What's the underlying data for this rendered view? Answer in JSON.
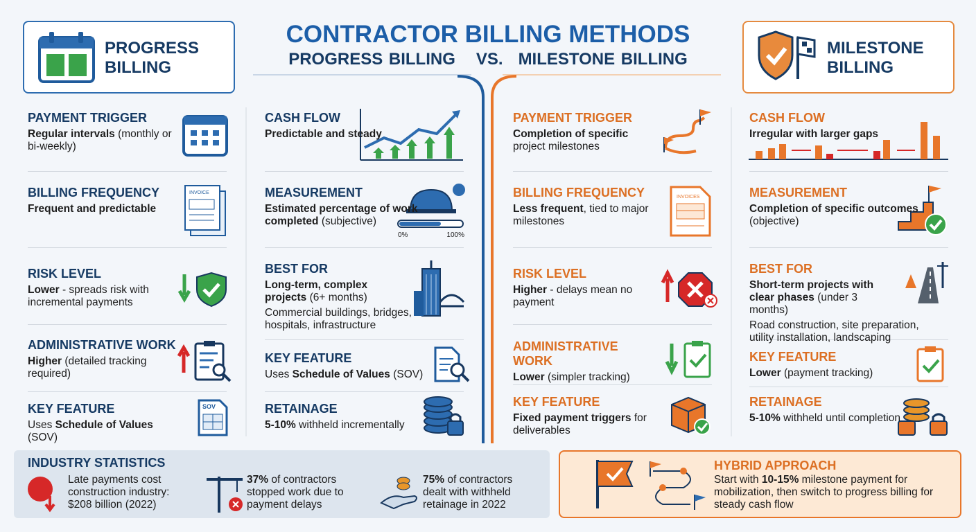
{
  "title": "CONTRACTOR BILLING METHODS",
  "subtitle": {
    "left": "PROGRESS BILLING",
    "vs": "VS.",
    "right": "MILESTONE BILLING"
  },
  "progress": {
    "badge": "PROGRESS BILLING",
    "left": [
      {
        "heading": "PAYMENT TRIGGER",
        "body": [
          {
            "text": "Regular intervals",
            "bold": true
          },
          {
            "text": " (monthly or bi-weekly)"
          }
        ]
      },
      {
        "heading": "BILLING FREQUENCY",
        "body": [
          {
            "text": "Frequent and predictable",
            "bold": true
          }
        ],
        "icon_text": "INVOICE"
      },
      {
        "heading": "RISK LEVEL",
        "body": [
          {
            "text": "Lower",
            "bold": true
          },
          {
            "text": " - spreads risk with incremental payments"
          }
        ]
      },
      {
        "heading": "ADMINISTRATIVE WORK",
        "body": [
          {
            "text": "Higher",
            "bold": true
          },
          {
            "text": " (detailed tracking required)"
          }
        ]
      },
      {
        "heading": "KEY FEATURE",
        "body": [
          {
            "text": "Uses "
          },
          {
            "text": "Schedule of Values",
            "bold": true
          },
          {
            "text": " (SOV)"
          }
        ],
        "icon_text": "SOV"
      }
    ],
    "right": [
      {
        "heading": "CASH FLOW",
        "body": [
          {
            "text": "Predictable and steady",
            "bold": true
          }
        ]
      },
      {
        "heading": "MEASUREMENT",
        "body": [
          {
            "text": "Estimated percentage of work completed",
            "bold": true
          },
          {
            "text": " (subjective)"
          }
        ],
        "scale_labels": [
          "0%",
          "100%"
        ]
      },
      {
        "heading": "BEST FOR",
        "body": [
          {
            "text": "Long-term, complex projects",
            "bold": true
          },
          {
            "text": " (6+ months)"
          }
        ],
        "note": "Commercial buildings, bridges, hospitals, infrastructure"
      },
      {
        "heading": "KEY FEATURE",
        "body": [
          {
            "text": "Uses "
          },
          {
            "text": "Schedule of Values",
            "bold": true
          },
          {
            "text": " (SOV)"
          }
        ]
      },
      {
        "heading": "RETAINAGE",
        "body": [
          {
            "text": "5-10%",
            "bold": true
          },
          {
            "text": " withheld incrementally"
          }
        ]
      }
    ]
  },
  "milestone": {
    "badge": "MILESTONE BILLING",
    "left": [
      {
        "heading": "PAYMENT TRIGGER",
        "body": [
          {
            "text": "Completion of specific",
            "bold": true
          },
          {
            "text": " project milestones"
          }
        ]
      },
      {
        "heading": "BILLING FREQUENCY",
        "body": [
          {
            "text": "Less frequent",
            "bold": true
          },
          {
            "text": ", tied to major milestones"
          }
        ],
        "icon_text": "INVOICES"
      },
      {
        "heading": "RISK LEVEL",
        "body": [
          {
            "text": "Higher",
            "bold": true
          },
          {
            "text": " - delays mean no payment"
          }
        ]
      },
      {
        "heading": "ADMINISTRATIVE WORK",
        "body": [
          {
            "text": "Lower",
            "bold": true
          },
          {
            "text": " (simpler tracking)"
          }
        ]
      },
      {
        "heading": "KEY FEATURE",
        "body": [
          {
            "text": "Fixed payment triggers",
            "bold": true
          },
          {
            "text": " for deliverables"
          }
        ]
      }
    ],
    "right": [
      {
        "heading": "CASH FLOW",
        "body": [
          {
            "text": "Irregular with larger gaps",
            "bold": true
          }
        ]
      },
      {
        "heading": "MEASUREMENT",
        "body": [
          {
            "text": "Completion of specific outcomes",
            "bold": true
          },
          {
            "text": " (objective)"
          }
        ]
      },
      {
        "heading": "BEST FOR",
        "body": [
          {
            "text": "Short-term projects with clear phases",
            "bold": true
          },
          {
            "text": " (under 3 months)"
          }
        ],
        "note": "Road construction, site preparation, utility installation, landscaping"
      },
      {
        "heading": "KEY FEATURE",
        "body": [
          {
            "text": "Lower",
            "bold": true
          },
          {
            "text": " (payment tracking)"
          }
        ]
      },
      {
        "heading": "RETAINAGE",
        "body": [
          {
            "text": "5-10%",
            "bold": true
          },
          {
            "text": " withheld until completion"
          }
        ]
      }
    ]
  },
  "stats": {
    "title": "INDUSTRY STATISTICS",
    "items": [
      [
        {
          "text": "Late payments cost construction industry: $208 billion (2022)"
        }
      ],
      [
        {
          "text": "37%",
          "bold": true
        },
        {
          "text": " of contractors stopped work due to payment delays"
        }
      ],
      [
        {
          "text": "75%",
          "bold": true
        },
        {
          "text": " of contractors dealt with withheld retainage in 2022"
        }
      ]
    ]
  },
  "hybrid": {
    "title": "HYBRID APPROACH",
    "body": [
      {
        "text": "Start with "
      },
      {
        "text": "10-15%",
        "bold": true
      },
      {
        "text": " milestone payment for mobilization, then switch to progress billing for steady cash flow"
      }
    ]
  }
}
